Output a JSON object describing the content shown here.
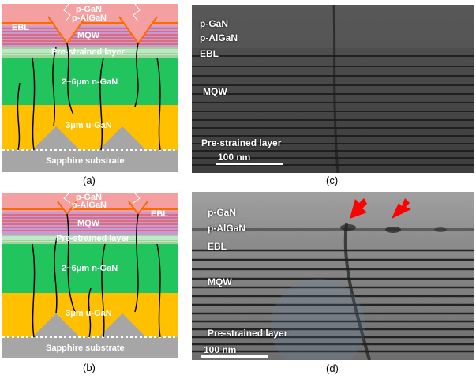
{
  "figure": {
    "panel_a": {
      "caption": "(a)",
      "labels": {
        "pgan": "p-GaN",
        "palgan": "p-AlGaN",
        "ebl": "EBL",
        "mqw": "MQW",
        "prestrained": "Pre-strained layer",
        "ngan": "2~6μm n-GaN",
        "ugan": "3μm u-GaN",
        "sapphire": "Sapphire substrate"
      }
    },
    "panel_b": {
      "caption": "(b)",
      "labels": {
        "pgan": "p-GaN",
        "palgan": "p-AlGaN",
        "ebl": "EBL",
        "mqw": "MQW",
        "prestrained": "Pre-strained layer",
        "ngan": "2~6μm n-GaN",
        "ugan": "3μm u-GaN",
        "sapphire": "Sapphire substrate"
      }
    },
    "panel_c": {
      "caption": "(c)",
      "labels": {
        "pgan": "p-GaN",
        "palgan": "p-AlGaN",
        "ebl": "EBL",
        "mqw": "MQW",
        "prestrained": "Pre-strained layer"
      },
      "scalebar": "100 nm"
    },
    "panel_d": {
      "caption": "(d)",
      "labels": {
        "pgan": "p-GaN",
        "palgan": "p-AlGaN",
        "ebl": "EBL",
        "mqw": "MQW",
        "prestrained": "Pre-strained layer"
      },
      "scalebar": "100 nm"
    },
    "colors": {
      "pgan": "#f5a0a0",
      "ngan": "#22c45e",
      "ugan": "#ffc000",
      "sapphire": "#a6a6a6",
      "prestrained": "#c6e0b4",
      "arrow": "#ff0000"
    }
  }
}
